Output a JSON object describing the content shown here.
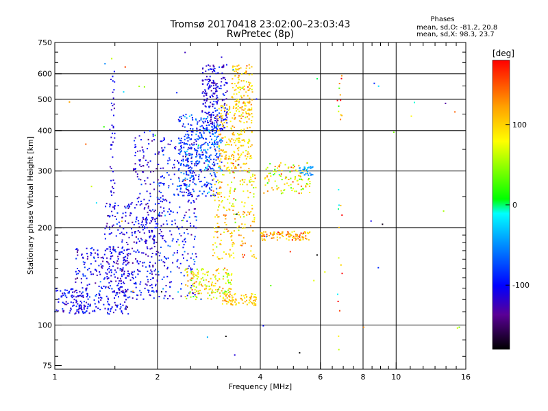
{
  "chart_data": {
    "type": "scatter",
    "title": "Tromsø 20170418 23:02:00–23:03:43",
    "subtitle": "RwPretec (8p)",
    "phases_box": {
      "heading": "Phases",
      "line1": "mean, sd,O: -81.2, 20.8",
      "line2": "mean, sd,X:  98.3, 23.7"
    },
    "xlabel": "Frequency [MHz]",
    "ylabel": "Stationary phase Virtual Height [km]",
    "x_scale": "log",
    "y_scale": "log",
    "xlim": [
      1,
      16
    ],
    "ylim": [
      73,
      750
    ],
    "x_ticks": [
      {
        "value": 1,
        "label": "1"
      },
      {
        "value": 2,
        "label": "2"
      },
      {
        "value": 4,
        "label": "4"
      },
      {
        "value": 6,
        "label": "6"
      },
      {
        "value": 8,
        "label": "8"
      },
      {
        "value": 10,
        "label": "10"
      },
      {
        "value": 16,
        "label": "16"
      }
    ],
    "x_gridlines": [
      2,
      4,
      6,
      8,
      10
    ],
    "y_ticks": [
      {
        "value": 75,
        "label": "75"
      },
      {
        "value": 100,
        "label": "100"
      },
      {
        "value": 200,
        "label": "200"
      },
      {
        "value": 300,
        "label": "300"
      },
      {
        "value": 400,
        "label": "400"
      },
      {
        "value": 500,
        "label": "500"
      },
      {
        "value": 600,
        "label": "600"
      },
      {
        "value": 750,
        "label": "750"
      }
    ],
    "y_gridlines": [
      100,
      200,
      300,
      400,
      500,
      600
    ],
    "grid": true,
    "colorbar": {
      "label": "[deg]",
      "min": -180,
      "max": 180,
      "ticks": [
        {
          "value": 100,
          "label": "100"
        },
        {
          "value": 0,
          "label": "0"
        },
        {
          "value": -100,
          "label": "-100"
        }
      ],
      "colors": [
        "#000000",
        "#5a0096",
        "#0000ff",
        "#00a0ff",
        "#00ffff",
        "#00ff00",
        "#ffff00",
        "#ffa000",
        "#ff0000"
      ]
    },
    "clusters": [
      {
        "fmin": 1.0,
        "fmax": 1.25,
        "hmin": 108,
        "hmax": 130,
        "phase": -105,
        "spread": 15,
        "n": 90
      },
      {
        "fmin": 1.15,
        "fmax": 1.65,
        "hmin": 108,
        "hmax": 175,
        "phase": -105,
        "spread": 18,
        "n": 260
      },
      {
        "fmin": 1.4,
        "fmax": 2.0,
        "hmin": 120,
        "hmax": 240,
        "phase": -108,
        "spread": 18,
        "n": 320
      },
      {
        "fmin": 1.7,
        "fmax": 2.1,
        "hmin": 180,
        "hmax": 400,
        "phase": -112,
        "spread": 15,
        "n": 130
      },
      {
        "fmin": 1.45,
        "fmax": 1.5,
        "hmin": 250,
        "hmax": 610,
        "phase": -110,
        "spread": 10,
        "n": 40
      },
      {
        "fmin": 2.0,
        "fmax": 2.6,
        "hmin": 120,
        "hmax": 380,
        "phase": -95,
        "spread": 25,
        "n": 260
      },
      {
        "fmin": 2.3,
        "fmax": 3.0,
        "hmin": 250,
        "hmax": 450,
        "phase": -80,
        "spread": 25,
        "n": 300
      },
      {
        "fmin": 2.4,
        "fmax": 3.3,
        "hmin": 120,
        "hmax": 150,
        "phase": 80,
        "spread": 35,
        "n": 160
      },
      {
        "fmin": 2.7,
        "fmax": 3.2,
        "hmin": 400,
        "hmax": 640,
        "phase": -110,
        "spread": 15,
        "n": 220
      },
      {
        "fmin": 2.6,
        "fmax": 3.1,
        "hmin": 300,
        "hmax": 420,
        "phase": -70,
        "spread": 30,
        "n": 120
      },
      {
        "fmin": 3.0,
        "fmax": 3.8,
        "hmin": 300,
        "hmax": 480,
        "phase": 100,
        "spread": 20,
        "n": 220
      },
      {
        "fmin": 3.3,
        "fmax": 3.8,
        "hmin": 450,
        "hmax": 640,
        "phase": 105,
        "spread": 20,
        "n": 120
      },
      {
        "fmin": 2.9,
        "fmax": 3.9,
        "hmin": 160,
        "hmax": 300,
        "phase": 100,
        "spread": 30,
        "n": 200
      },
      {
        "fmin": 3.1,
        "fmax": 3.9,
        "hmin": 115,
        "hmax": 125,
        "phase": 105,
        "spread": 15,
        "n": 80
      },
      {
        "fmin": 4.0,
        "fmax": 5.6,
        "hmin": 183,
        "hmax": 195,
        "phase": 120,
        "spread": 25,
        "n": 110
      },
      {
        "fmin": 4.1,
        "fmax": 5.6,
        "hmin": 255,
        "hmax": 320,
        "phase": 85,
        "spread": 40,
        "n": 110
      },
      {
        "fmin": 5.2,
        "fmax": 5.7,
        "hmin": 290,
        "hmax": 310,
        "phase": -40,
        "spread": 10,
        "n": 30
      },
      {
        "fmin": 6.7,
        "fmax": 6.95,
        "hmin": 80,
        "hmax": 600,
        "phase": 110,
        "spread": 60,
        "n": 25
      },
      {
        "fmin": 1.0,
        "fmax": 16.0,
        "hmin": 80,
        "hmax": 700,
        "phase": 0,
        "spread": 120,
        "n": 60
      }
    ]
  }
}
